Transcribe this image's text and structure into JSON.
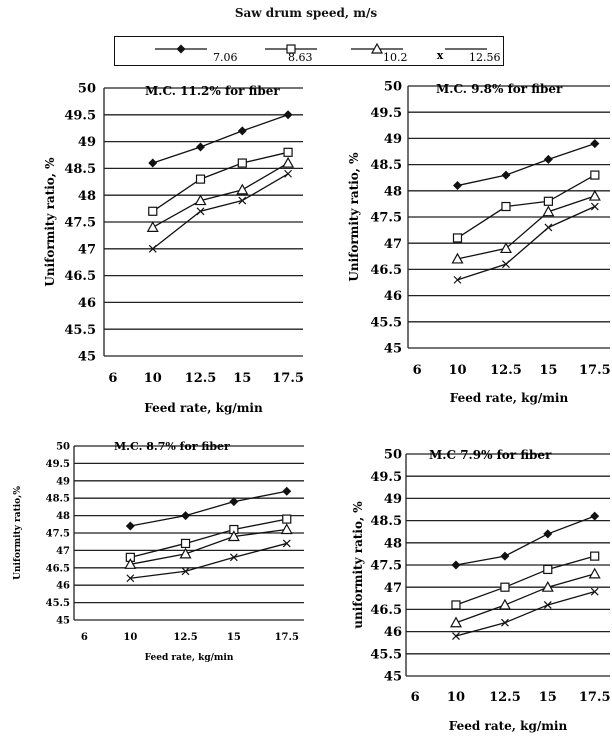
{
  "legend": {
    "title": "Saw drum speed, m/s",
    "entries": [
      {
        "label": "7.06",
        "marker": "diamond"
      },
      {
        "label": "8.63",
        "marker": "square"
      },
      {
        "label": "10.2",
        "marker": "triangle"
      },
      {
        "label": "12.56",
        "marker": "x"
      }
    ]
  },
  "chart_data": [
    {
      "type": "line",
      "title": "M.C. 11.2% for fiber",
      "xlabel": "Feed rate, kg/min",
      "ylabel": "Uniformity ratio, %",
      "categories": [
        "6",
        "10",
        "12.5",
        "15",
        "17.5"
      ],
      "yticks": [
        "50",
        "49.5",
        "49",
        "48.5",
        "48",
        "47.5",
        "47",
        "46.5",
        "46",
        "45.5",
        "45"
      ],
      "ylim": [
        45,
        50
      ],
      "grid": true,
      "series": [
        {
          "name": "7.06",
          "marker": "diamond",
          "values": [
            null,
            48.6,
            48.9,
            49.2,
            49.5
          ]
        },
        {
          "name": "8.63",
          "marker": "square",
          "values": [
            null,
            47.7,
            48.3,
            48.6,
            48.8
          ]
        },
        {
          "name": "10.2",
          "marker": "triangle",
          "values": [
            null,
            47.4,
            47.9,
            48.1,
            48.6
          ]
        },
        {
          "name": "12.56",
          "marker": "x",
          "values": [
            null,
            47.0,
            47.7,
            47.9,
            48.4
          ]
        }
      ]
    },
    {
      "type": "line",
      "title": "M.C. 9.8% for fiber",
      "xlabel": "Feed rate, kg/min",
      "ylabel": "Uniformity ratio, %",
      "categories": [
        "6",
        "10",
        "12.5",
        "15",
        "17.5"
      ],
      "yticks": [
        "50",
        "49.5",
        "49",
        "48.5",
        "48",
        "47.5",
        "47",
        "46.5",
        "46",
        "45.5",
        "45"
      ],
      "ylim": [
        45,
        50
      ],
      "grid": true,
      "series": [
        {
          "name": "7.06",
          "marker": "diamond",
          "values": [
            null,
            48.1,
            48.3,
            48.6,
            48.9
          ]
        },
        {
          "name": "8.63",
          "marker": "square",
          "values": [
            null,
            47.1,
            47.7,
            47.8,
            48.3
          ]
        },
        {
          "name": "10.2",
          "marker": "triangle",
          "values": [
            null,
            46.7,
            46.9,
            47.6,
            47.9
          ]
        },
        {
          "name": "12.56",
          "marker": "x",
          "values": [
            null,
            46.3,
            46.6,
            47.3,
            47.7
          ]
        }
      ]
    },
    {
      "type": "line",
      "title": "M.C. 8.7% for fiber",
      "xlabel": "Feed rate, kg/min",
      "ylabel": "Uniformity ratio,%",
      "categories": [
        "6",
        "10",
        "12.5",
        "15",
        "17.5"
      ],
      "yticks": [
        "50",
        "49.5",
        "49",
        "48.5",
        "48",
        "47.5",
        "47",
        "46.5",
        "46",
        "45.5",
        "45"
      ],
      "ylim": [
        45,
        50
      ],
      "grid": true,
      "series": [
        {
          "name": "7.06",
          "marker": "diamond",
          "values": [
            null,
            47.7,
            48.0,
            48.4,
            48.7
          ]
        },
        {
          "name": "8.63",
          "marker": "square",
          "values": [
            null,
            46.8,
            47.2,
            47.6,
            47.9
          ]
        },
        {
          "name": "10.2",
          "marker": "triangle",
          "values": [
            null,
            46.6,
            46.9,
            47.4,
            47.6
          ]
        },
        {
          "name": "12.56",
          "marker": "x",
          "values": [
            null,
            46.2,
            46.4,
            46.8,
            47.2
          ]
        }
      ]
    },
    {
      "type": "line",
      "title": "M.C 7.9% for fiber",
      "xlabel": "Feed rate, kg/min",
      "ylabel": "uniformity ratio, %",
      "categories": [
        "6",
        "10",
        "12.5",
        "15",
        "17.5"
      ],
      "yticks": [
        "50",
        "49.5",
        "49",
        "48.5",
        "48",
        "47.5",
        "47",
        "46.5",
        "46",
        "45.5",
        "45"
      ],
      "ylim": [
        45,
        50
      ],
      "grid": true,
      "series": [
        {
          "name": "7.06",
          "marker": "diamond",
          "values": [
            null,
            47.5,
            47.7,
            48.2,
            48.6
          ]
        },
        {
          "name": "8.63",
          "marker": "square",
          "values": [
            null,
            46.6,
            47.0,
            47.4,
            47.7
          ]
        },
        {
          "name": "10.2",
          "marker": "triangle",
          "values": [
            null,
            46.2,
            46.6,
            47.0,
            47.3
          ]
        },
        {
          "name": "12.56",
          "marker": "x",
          "values": [
            null,
            45.9,
            46.2,
            46.6,
            46.9
          ]
        }
      ]
    }
  ]
}
